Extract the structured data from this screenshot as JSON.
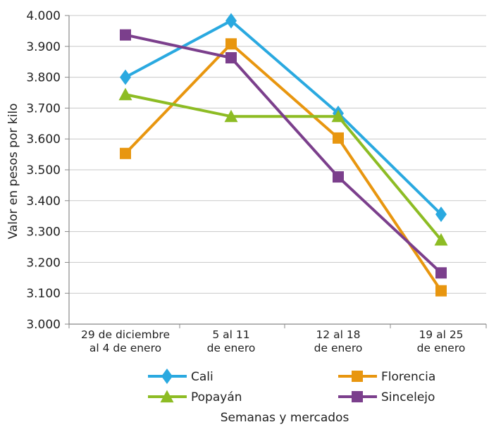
{
  "chart_data": {
    "type": "line",
    "categories": [
      [
        "29 de diciembre",
        "al 4 de enero"
      ],
      [
        "5 al 11",
        "de enero"
      ],
      [
        "12 al 18",
        "de enero"
      ],
      [
        "19 al 25",
        "de enero"
      ]
    ],
    "ylabel": "Valor en pesos por kilo",
    "xlabel": "Semanas y mercados",
    "ylim": [
      3000,
      4000
    ],
    "yticks": [
      3000,
      3100,
      3200,
      3300,
      3400,
      3500,
      3600,
      3700,
      3800,
      3900,
      4000
    ],
    "ytick_labels": [
      "3.000",
      "3.100",
      "3.200",
      "3.300",
      "3.400",
      "3.500",
      "3.600",
      "3.700",
      "3.800",
      "3.900",
      "4.000"
    ],
    "grid": true,
    "legend_position": "bottom",
    "series": [
      {
        "name": "Cali",
        "color": "#2aa9e0",
        "marker": "diamond",
        "values": [
          3800,
          3983,
          3683,
          3356
        ]
      },
      {
        "name": "Florencia",
        "color": "#e8960f",
        "marker": "square",
        "values": [
          3553,
          3908,
          3603,
          3108
        ]
      },
      {
        "name": "Popayán",
        "color": "#8dbc24",
        "marker": "triangle",
        "values": [
          3744,
          3673,
          3673,
          3273
        ]
      },
      {
        "name": "Sincelejo",
        "color": "#7b3f8c",
        "marker": "square",
        "values": [
          3937,
          3863,
          3477,
          3166
        ]
      }
    ]
  }
}
